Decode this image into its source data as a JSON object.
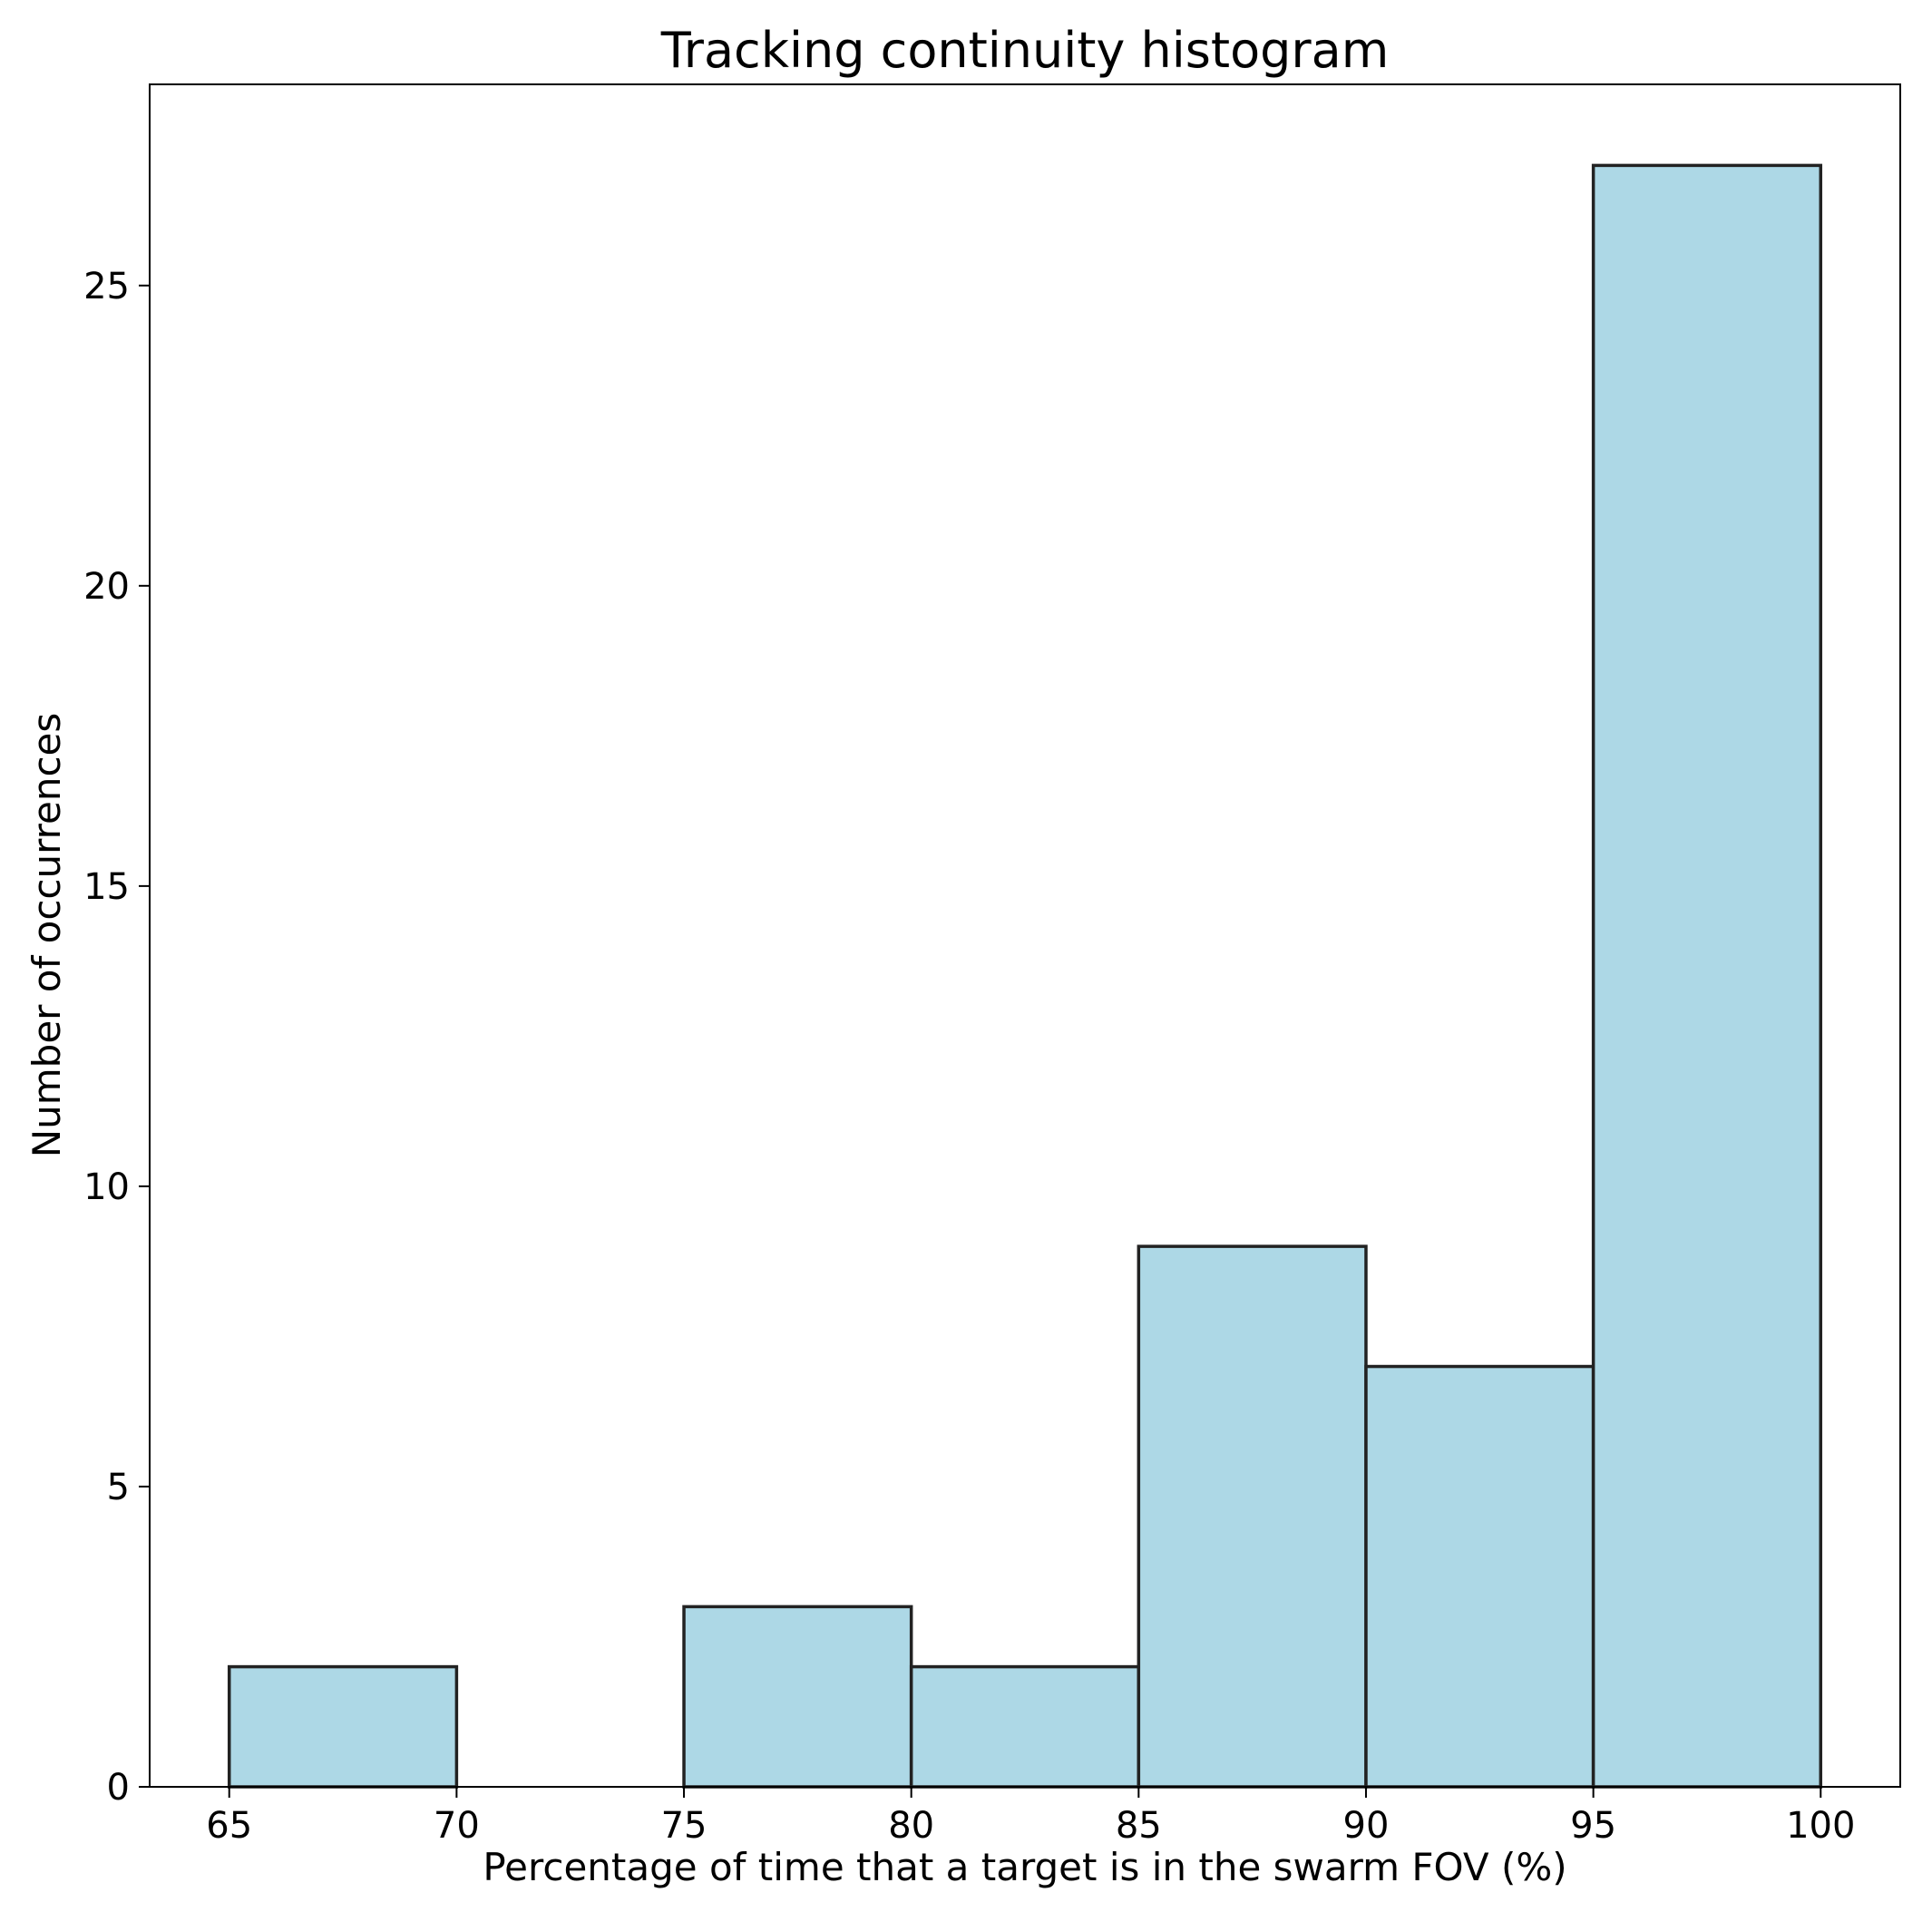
{
  "chart_data": {
    "type": "bar",
    "title": "Tracking continuity histogram",
    "xlabel": "Percentage of time that a target is in the swarm FOV (%)",
    "ylabel": "Number of occurrences",
    "bins": [
      {
        "from": 65,
        "to": 70,
        "count": 2
      },
      {
        "from": 70,
        "to": 75,
        "count": 0
      },
      {
        "from": 75,
        "to": 80,
        "count": 3
      },
      {
        "from": 80,
        "to": 85,
        "count": 2
      },
      {
        "from": 85,
        "to": 90,
        "count": 9
      },
      {
        "from": 90,
        "to": 95,
        "count": 7
      },
      {
        "from": 95,
        "to": 100,
        "count": 27
      }
    ],
    "xlim": [
      63.25,
      101.75
    ],
    "ylim": [
      0,
      28.35
    ],
    "xticks": [
      65,
      70,
      75,
      80,
      85,
      90,
      95,
      100
    ],
    "xtick_labels": [
      "65",
      "70",
      "75",
      "80",
      "85",
      "90",
      "95",
      "100"
    ],
    "yticks": [
      0,
      5,
      10,
      15,
      20,
      25
    ],
    "ytick_labels": [
      "0",
      "5",
      "10",
      "15",
      "20",
      "25"
    ],
    "grid": false,
    "colors": {
      "bar_fill": "#add8e6",
      "bar_edge": "#222222",
      "axes": "#000000"
    }
  }
}
